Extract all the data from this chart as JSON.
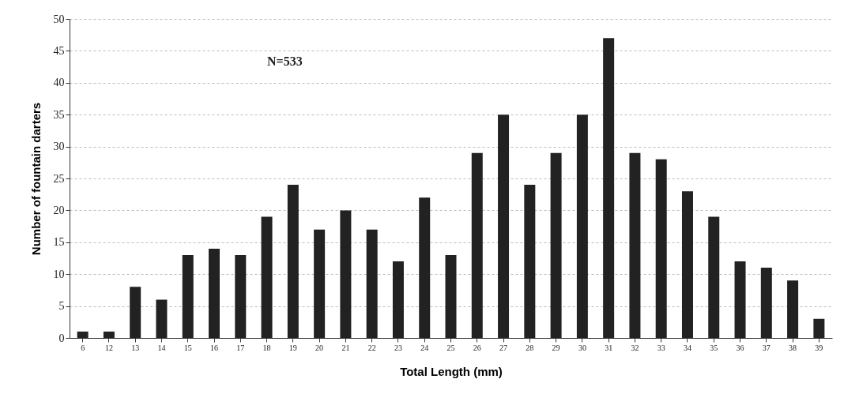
{
  "chart_data": {
    "type": "bar",
    "xlabel": "Total Length (mm)",
    "ylabel": "Number of fountain darters",
    "categories": [
      "6",
      "12",
      "13",
      "14",
      "15",
      "16",
      "17",
      "18",
      "19",
      "20",
      "21",
      "22",
      "23",
      "24",
      "25",
      "26",
      "27",
      "28",
      "29",
      "30",
      "31",
      "32",
      "33",
      "34",
      "35",
      "36",
      "37",
      "38",
      "39"
    ],
    "values": [
      1,
      1,
      8,
      6,
      13,
      14,
      13,
      19,
      24,
      17,
      20,
      17,
      12,
      22,
      13,
      29,
      35,
      24,
      29,
      35,
      47,
      29,
      28,
      23,
      19,
      12,
      11,
      9,
      3
    ],
    "color": "#222222",
    "ylim": [
      0,
      50
    ],
    "yticks": [
      0,
      5,
      10,
      15,
      20,
      25,
      30,
      35,
      40,
      45,
      50
    ],
    "grid": "y",
    "annotations": [
      "N=533"
    ]
  }
}
